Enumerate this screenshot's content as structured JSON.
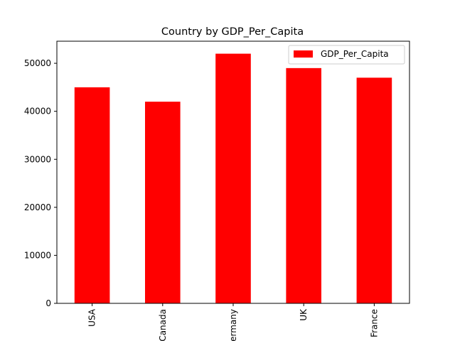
{
  "chart_data": {
    "type": "bar",
    "title": "Country by GDP_Per_Capita",
    "xlabel": "",
    "ylabel": "",
    "categories": [
      "USA",
      "Canada",
      "Germany",
      "UK",
      "France"
    ],
    "series": [
      {
        "name": "GDP_Per_Capita",
        "values": [
          45000,
          42000,
          52000,
          49000,
          47000
        ]
      }
    ],
    "ylim": [
      0,
      54600
    ],
    "yticks": [
      0,
      10000,
      20000,
      30000,
      40000,
      50000
    ],
    "grid": false,
    "legend": "top-right",
    "colors": {
      "bar": "#ff0000",
      "axis": "#000000",
      "background": "#ffffff"
    }
  }
}
